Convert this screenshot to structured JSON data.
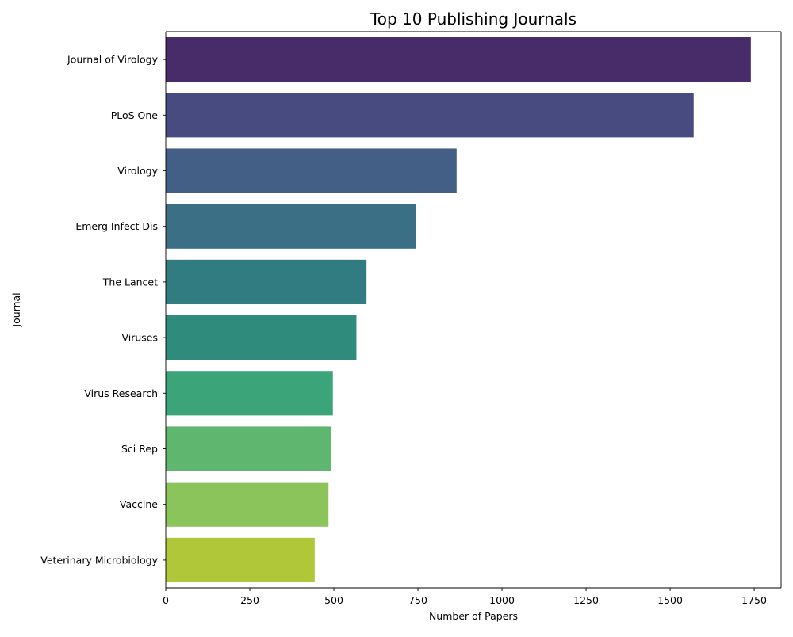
{
  "chart_data": {
    "type": "bar",
    "orientation": "horizontal",
    "title": "Top 10 Publishing Journals",
    "xlabel": "Number of Papers",
    "ylabel": "Journal",
    "categories": [
      "Journal of Virology",
      "PLoS One",
      "Virology",
      "Emerg Infect Dis",
      "The Lancet",
      "Viruses",
      "Virus Research",
      "Sci Rep",
      "Vaccine",
      "Veterinary Microbiology"
    ],
    "values": [
      1740,
      1570,
      865,
      745,
      597,
      567,
      497,
      492,
      484,
      443
    ],
    "colors": [
      "#472c69",
      "#484b80",
      "#435f86",
      "#3a6f85",
      "#317c80",
      "#2f8b7c",
      "#3ba478",
      "#5fb66e",
      "#8bc45a",
      "#b0c73a"
    ],
    "xlim": [
      0,
      1830
    ],
    "xticks": [
      0,
      250,
      500,
      750,
      1000,
      1250,
      1500,
      1750
    ],
    "xtick_labels": [
      "0",
      "250",
      "500",
      "750",
      "1000",
      "1250",
      "1500",
      "1750"
    ],
    "grid": false,
    "legend": "none"
  }
}
